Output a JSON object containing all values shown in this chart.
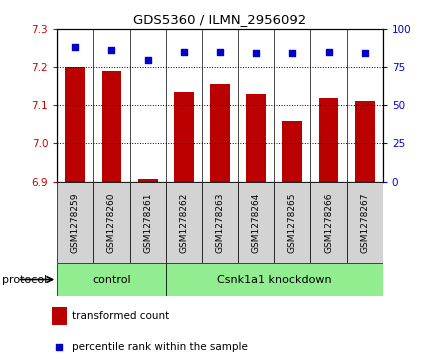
{
  "title": "GDS5360 / ILMN_2956092",
  "samples": [
    "GSM1278259",
    "GSM1278260",
    "GSM1278261",
    "GSM1278262",
    "GSM1278263",
    "GSM1278264",
    "GSM1278265",
    "GSM1278266",
    "GSM1278267"
  ],
  "bar_values": [
    7.2,
    7.19,
    6.906,
    7.135,
    7.155,
    7.13,
    7.06,
    7.12,
    7.11
  ],
  "dot_values": [
    88,
    86,
    80,
    85,
    85,
    84,
    84,
    85,
    84
  ],
  "bar_color": "#bb0000",
  "dot_color": "#0000cc",
  "ylim_left": [
    6.9,
    7.3
  ],
  "ylim_right": [
    0,
    100
  ],
  "yticks_left": [
    6.9,
    7.0,
    7.1,
    7.2,
    7.3
  ],
  "yticks_right": [
    0,
    25,
    50,
    75,
    100
  ],
  "control_label": "control",
  "knockdown_label": "Csnk1a1 knockdown",
  "group_color": "#90ee90",
  "n_control": 3,
  "n_knockdown": 6,
  "legend_bar_label": "transformed count",
  "legend_dot_label": "percentile rank within the sample",
  "protocol_label": "protocol",
  "tick_label_color_left": "#cc0000",
  "tick_label_color_right": "#0000cc",
  "tick_label_gray": "#cccccc",
  "sample_box_color": "#d3d3d3"
}
